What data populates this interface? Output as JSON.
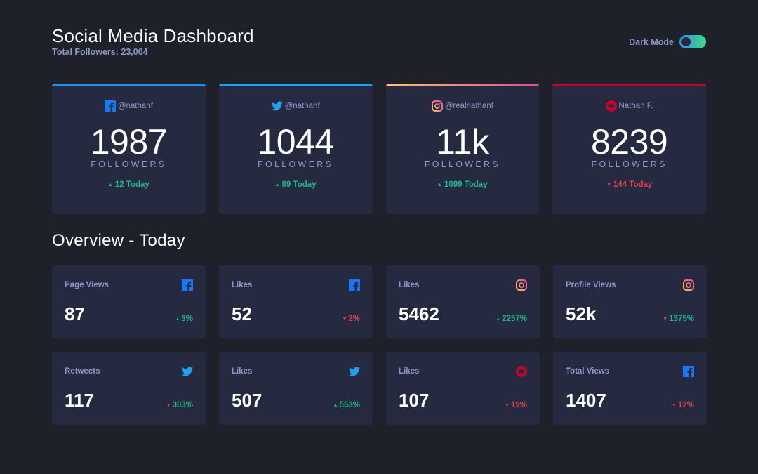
{
  "header": {
    "title": "Social Media Dashboard",
    "subtitle": "Total Followers: 23,004",
    "toggle_label": "Dark Mode",
    "toggle_on": true
  },
  "colors": {
    "facebook": "#1778f2",
    "twitter": "#1da1f2",
    "instagram_start": "#fdc468",
    "instagram_end": "#df4996",
    "youtube": "#c4032a",
    "up": "#1db489",
    "down": "#dc414c"
  },
  "followers": [
    {
      "platform": "facebook",
      "handle": "@nathanf",
      "count": "1987",
      "label": "FOLLOWERS",
      "today": "12 Today",
      "trend": "up"
    },
    {
      "platform": "twitter",
      "handle": "@nathanf",
      "count": "1044",
      "label": "FOLLOWERS",
      "today": "99 Today",
      "trend": "up"
    },
    {
      "platform": "instagram",
      "handle": "@realnathanf",
      "count": "11k",
      "label": "FOLLOWERS",
      "today": "1099 Today",
      "trend": "up"
    },
    {
      "platform": "youtube",
      "handle": "Nathan F.",
      "count": "8239",
      "label": "FOLLOWERS",
      "today": "144 Today",
      "trend": "down"
    }
  ],
  "overview": {
    "title": "Overview - Today",
    "cards": [
      {
        "label": "Page Views",
        "platform": "facebook",
        "value": "87",
        "change": "3%",
        "arrow": "up",
        "color": "up"
      },
      {
        "label": "Likes",
        "platform": "facebook",
        "value": "52",
        "change": "2%",
        "arrow": "down",
        "color": "down"
      },
      {
        "label": "Likes",
        "platform": "instagram",
        "value": "5462",
        "change": "2257%",
        "arrow": "up",
        "color": "up"
      },
      {
        "label": "Profile Views",
        "platform": "instagram",
        "value": "52k",
        "change": "1375%",
        "arrow": "down",
        "color": "up"
      },
      {
        "label": "Retweets",
        "platform": "twitter",
        "value": "117",
        "change": "303%",
        "arrow": "down",
        "color": "up"
      },
      {
        "label": "Likes",
        "platform": "twitter",
        "value": "507",
        "change": "553%",
        "arrow": "up",
        "color": "up"
      },
      {
        "label": "Likes",
        "platform": "youtube",
        "value": "107",
        "change": "19%",
        "arrow": "down",
        "color": "down"
      },
      {
        "label": "Total Views",
        "platform": "facebook",
        "value": "1407",
        "change": "12%",
        "arrow": "down",
        "color": "down"
      }
    ]
  }
}
